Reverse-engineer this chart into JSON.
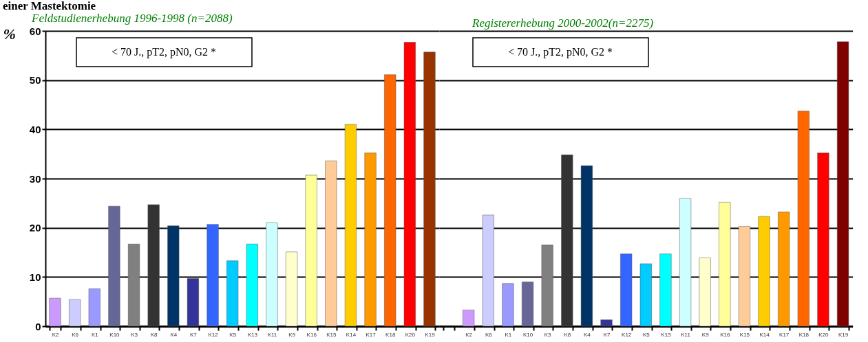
{
  "chart_data": [
    {
      "type": "bar",
      "title": "einer Mastektomie",
      "subtitle": "Feldstudienerhebung 1996-1998 (n=2088)",
      "ylabel": "%",
      "categories": [
        "K2",
        "K6",
        "K1",
        "K10",
        "K3",
        "K8",
        "K4",
        "K7",
        "K12",
        "K5",
        "K13",
        "K11",
        "K9",
        "K16",
        "K15",
        "K14",
        "K17",
        "K18",
        "K20",
        "K19"
      ],
      "values": [
        5.7,
        5.4,
        7.6,
        24.4,
        16.7,
        24.7,
        20.4,
        9.7,
        20.7,
        13.3,
        16.7,
        21.0,
        15.1,
        30.7,
        33.6,
        41.0,
        35.2,
        51.1,
        57.7,
        55.7
      ],
      "colors": [
        "#cc99ff",
        "#ccccff",
        "#9999ff",
        "#666699",
        "#808080",
        "#333333",
        "#003366",
        "#333399",
        "#3366ff",
        "#00ccff",
        "#00ffff",
        "#ccffff",
        "#ffffcc",
        "#ffff99",
        "#ffcc99",
        "#ffcc00",
        "#ff9900",
        "#ff6600",
        "#ff0000",
        "#993300"
      ],
      "ylim": [
        0,
        60
      ],
      "yticks": [
        0,
        10,
        20,
        30,
        40,
        50,
        60
      ],
      "grid": "y",
      "annotations": [
        "< 70 J., pT2, pN0, G2 *"
      ]
    },
    {
      "type": "bar",
      "subtitle": "Registererhebung 2000-2002(n=2275)",
      "categories": [
        "K2",
        "K6",
        "K1",
        "K10",
        "K3",
        "K8",
        "K4",
        "K7",
        "K12",
        "K5",
        "K13",
        "K11",
        "K9",
        "K16",
        "K15",
        "K14",
        "K17",
        "K18",
        "K20",
        "K19"
      ],
      "values": [
        3.3,
        22.6,
        8.7,
        9.0,
        16.5,
        34.8,
        32.6,
        1.3,
        14.7,
        12.7,
        14.7,
        26.0,
        13.9,
        25.2,
        20.3,
        22.3,
        23.2,
        43.7,
        35.2,
        57.8
      ],
      "colors": [
        "#cc99ff",
        "#ccccff",
        "#9999ff",
        "#666699",
        "#808080",
        "#333333",
        "#003366",
        "#333399",
        "#3366ff",
        "#00ccff",
        "#00ffff",
        "#ccffff",
        "#ffffcc",
        "#ffff99",
        "#ffcc99",
        "#ffcc00",
        "#ff9900",
        "#ff6600",
        "#ff0000",
        "#800000"
      ],
      "ylim": [
        0,
        60
      ],
      "yticks": [
        0,
        10,
        20,
        30,
        40,
        50,
        60
      ],
      "grid": "y",
      "tick_labels": "x",
      "annotations": [
        "< 70 J., pT2, pN0, G2 *"
      ]
    }
  ]
}
